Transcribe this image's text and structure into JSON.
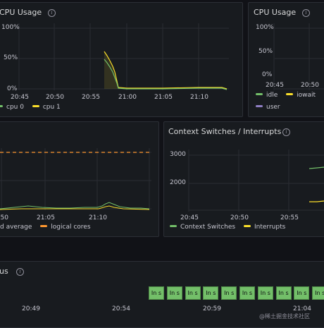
{
  "colors": {
    "green": "#73bf69",
    "yellow": "#fade2a",
    "blue": "#5794f2",
    "purple": "#8f7fc4",
    "orange": "#ff9830",
    "background": "#111217",
    "panel": "#181b1f"
  },
  "icons": {
    "info": "info-icon"
  },
  "info_glyph": "i",
  "cpu_usage": {
    "title": "CPU Usage",
    "y_ticks": [
      "100%",
      "50%",
      "0%"
    ],
    "x_ticks": [
      "20:45",
      "20:50",
      "20:55",
      "21:00",
      "21:05",
      "21:10"
    ],
    "legend": [
      {
        "label": "cpu 0",
        "color": "#73bf69"
      },
      {
        "label": "cpu 1",
        "color": "#fade2a"
      }
    ]
  },
  "cpu_usage_2": {
    "title": "CPU Usage",
    "y_ticks": [
      "100%",
      "50%",
      "0%"
    ],
    "x_ticks": [
      "20:45",
      "20:50"
    ],
    "legend": [
      {
        "label": "idle",
        "color": "#73bf69"
      },
      {
        "label": "iowait",
        "color": "#fade2a"
      },
      {
        "label": "user",
        "color": "#8f7fc4"
      }
    ]
  },
  "load": {
    "x_ticks": [
      "20:50",
      "21:05",
      "21:10"
    ],
    "legend": [
      {
        "label": "d average",
        "color": "#73bf69"
      },
      {
        "label": "logical cores",
        "color": "#ff9830"
      }
    ]
  },
  "context": {
    "title": "Context Switches / Interrupts",
    "y_ticks": [
      "3000",
      "2000"
    ],
    "x_ticks": [
      "20:45",
      "20:50",
      "20:55"
    ],
    "legend": [
      {
        "label": "Context Switches",
        "color": "#73bf69"
      },
      {
        "label": "Interrupts",
        "color": "#fade2a"
      }
    ]
  },
  "status": {
    "title": "us",
    "cell_label": "In s",
    "cell_count": 10,
    "x_ticks": [
      "20:49",
      "20:54",
      "20:59",
      "21:04"
    ]
  },
  "watermark": "@稀土掘金技术社区"
}
